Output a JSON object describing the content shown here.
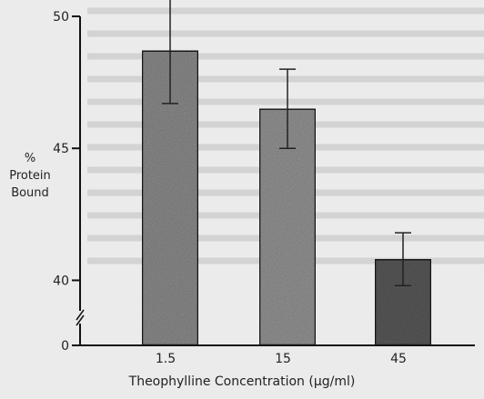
{
  "chart_data": {
    "type": "bar",
    "title": "",
    "ylabel_lines": [
      "%",
      "Protein",
      "Bound"
    ],
    "xlabel": "Theophylline Concentration (µg/ml)",
    "categories": [
      "1.5",
      "15",
      "45"
    ],
    "values": [
      48.7,
      46.5,
      40.8
    ],
    "errors": [
      2.0,
      1.5,
      1.0
    ],
    "yticks": [
      0,
      40,
      45,
      50
    ],
    "ylim": [
      38.5,
      50
    ],
    "axis_break": true,
    "bar_colors": [
      "#8e8e8e",
      "#979797",
      "#5b5b5b"
    ],
    "grid": false
  }
}
